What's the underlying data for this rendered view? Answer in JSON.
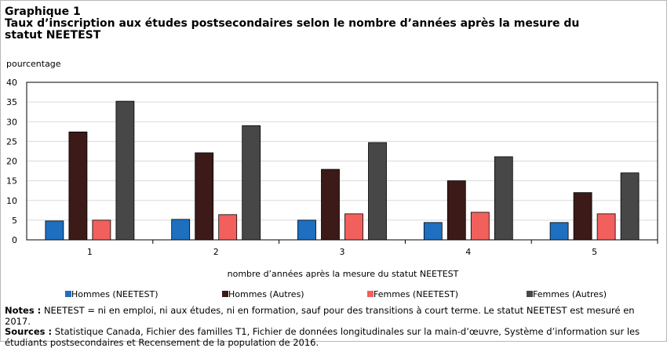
{
  "header": {
    "label": "Graphique 1",
    "title": "Taux d’inscription  aux études postsecondaires selon le nombre d’années après la mesure du statut NEETEST"
  },
  "chart_data": {
    "type": "bar",
    "ylabel": "pourcentage",
    "xlabel": "nombre d’années après la mesure du statut NEETEST",
    "ylim": [
      0,
      40
    ],
    "yticks": [
      0,
      5,
      10,
      15,
      20,
      25,
      30,
      35,
      40
    ],
    "grid": true,
    "legend_position": "bottom",
    "categories": [
      "1",
      "2",
      "3",
      "4",
      "5"
    ],
    "series": [
      {
        "name": "Hommes (NEETEST)",
        "color": "#1f6fc0",
        "values": [
          4.8,
          5.2,
          5.0,
          4.4,
          4.4
        ]
      },
      {
        "name": "Hommes (Autres)",
        "color": "#3b1a18",
        "values": [
          27.4,
          22.1,
          17.9,
          15.0,
          12.0
        ]
      },
      {
        "name": "Femmes (NEETEST)",
        "color": "#f2605d",
        "values": [
          5.0,
          6.4,
          6.6,
          7.0,
          6.6
        ]
      },
      {
        "name": "Femmes (Autres)",
        "color": "#474747",
        "values": [
          35.2,
          29.0,
          24.7,
          21.1,
          17.0
        ]
      }
    ]
  },
  "notes": {
    "notes_label": "Notes :",
    "notes_text": "NEETEST = ni en emploi, ni aux études, ni en formation, sauf pour des transitions à court terme. Le statut NEETEST est mesuré en 2017.",
    "sources_label": "Sources :",
    "sources_text": "Statistique Canada, Fichier des familles T1, Fichier de données longitudinales sur la main-d’œuvre, Système d’information sur les étudiants postsecondaires et Recensement de la population de 2016."
  }
}
